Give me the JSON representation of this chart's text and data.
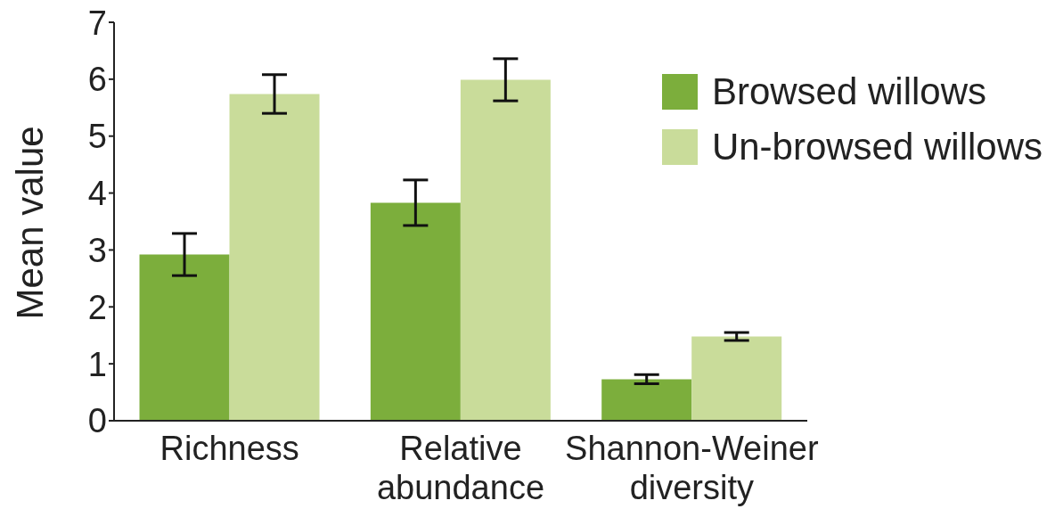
{
  "chart_data": {
    "type": "bar",
    "ylabel": "Mean value",
    "categories": [
      "Richness",
      "Relative abundance",
      "Shannon-Weiner diversity"
    ],
    "series": [
      {
        "name": "Browsed willows",
        "color": "#7cae3c",
        "values": [
          2.92,
          3.83,
          0.73
        ],
        "errors": [
          0.37,
          0.4,
          0.08
        ]
      },
      {
        "name": "Un-browsed willows",
        "color": "#c9dc9a",
        "values": [
          5.74,
          5.99,
          1.48
        ],
        "errors": [
          0.34,
          0.37,
          0.07
        ]
      }
    ],
    "ylim": [
      0,
      7
    ],
    "yticks": [
      0,
      1,
      2,
      3,
      4,
      5,
      6,
      7
    ],
    "grid": false,
    "legend": "top right"
  }
}
